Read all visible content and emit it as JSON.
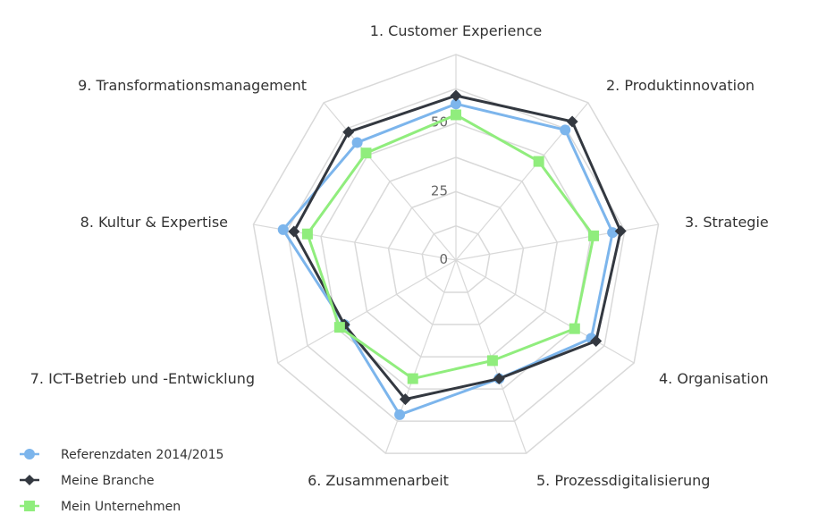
{
  "chart_data": {
    "type": "radar",
    "axes": [
      "1. Customer Experience",
      "2. Produktinnovation",
      "3. Strategie",
      "4. Organisation",
      "5. Prozessdigitalisierung",
      "6. Zusammenarbeit",
      "7. ICT-Betrieb und -Entwicklung",
      "8. Kultur & Expertise",
      "9. Transformationsmanagement"
    ],
    "ticks": [
      "0",
      "25",
      "50"
    ],
    "rmax": 75,
    "grid": true,
    "legend_position": "bottom-left",
    "series": [
      {
        "name": "Referenzdaten 2014/2015",
        "color": "#7cb5ec",
        "marker": "circle",
        "values": [
          57,
          62,
          58,
          57,
          46,
          60,
          47,
          64,
          56
        ]
      },
      {
        "name": "Meine Branche",
        "color": "#333840",
        "marker": "diamond",
        "values": [
          60,
          66,
          61,
          59,
          46,
          54,
          47,
          60,
          61
        ]
      },
      {
        "name": "Mein Unternehmen",
        "color": "#90ed7d",
        "marker": "square",
        "values": [
          53,
          47,
          51,
          50,
          39,
          46,
          49,
          55,
          51
        ]
      }
    ]
  }
}
